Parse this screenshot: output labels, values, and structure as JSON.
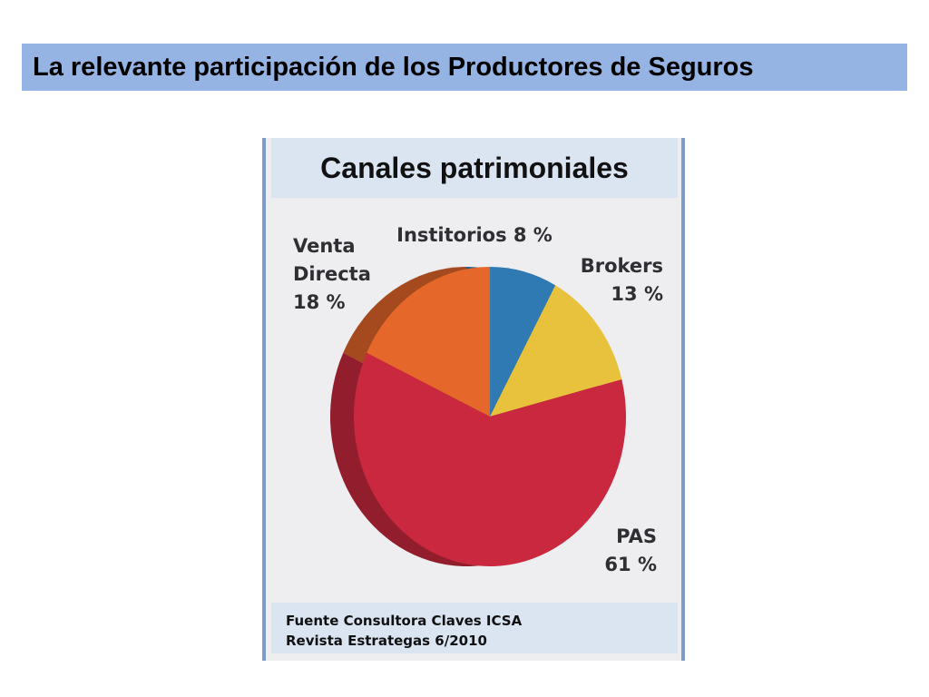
{
  "slide": {
    "title": "La relevante participación de los Productores de Seguros"
  },
  "chart_card": {
    "header": "Canales patrimoniales",
    "footer_line1": "Fuente Consultora Claves ICSA",
    "footer_line2": "Revista Estrategas 6/2010"
  },
  "chart_data": {
    "type": "pie",
    "title": "Canales patrimoniales",
    "slices": [
      {
        "label_lines": [
          "Institorios 8 %"
        ],
        "value": 8,
        "color": "#2f7ab3"
      },
      {
        "label_lines": [
          "Brokers",
          "13 %"
        ],
        "value": 13,
        "color": "#e8c23c"
      },
      {
        "label_lines": [
          "PAS",
          "61 %"
        ],
        "value": 61,
        "color": "#c9283f"
      },
      {
        "label_lines": [
          "Venta",
          "Directa",
          "18 %"
        ],
        "value": 18,
        "color": "#e5672a"
      }
    ]
  },
  "colors": {
    "title_bar": "#95b3e3",
    "card_border": "#7f9cc9",
    "card_panel": "#dbe5f2"
  }
}
